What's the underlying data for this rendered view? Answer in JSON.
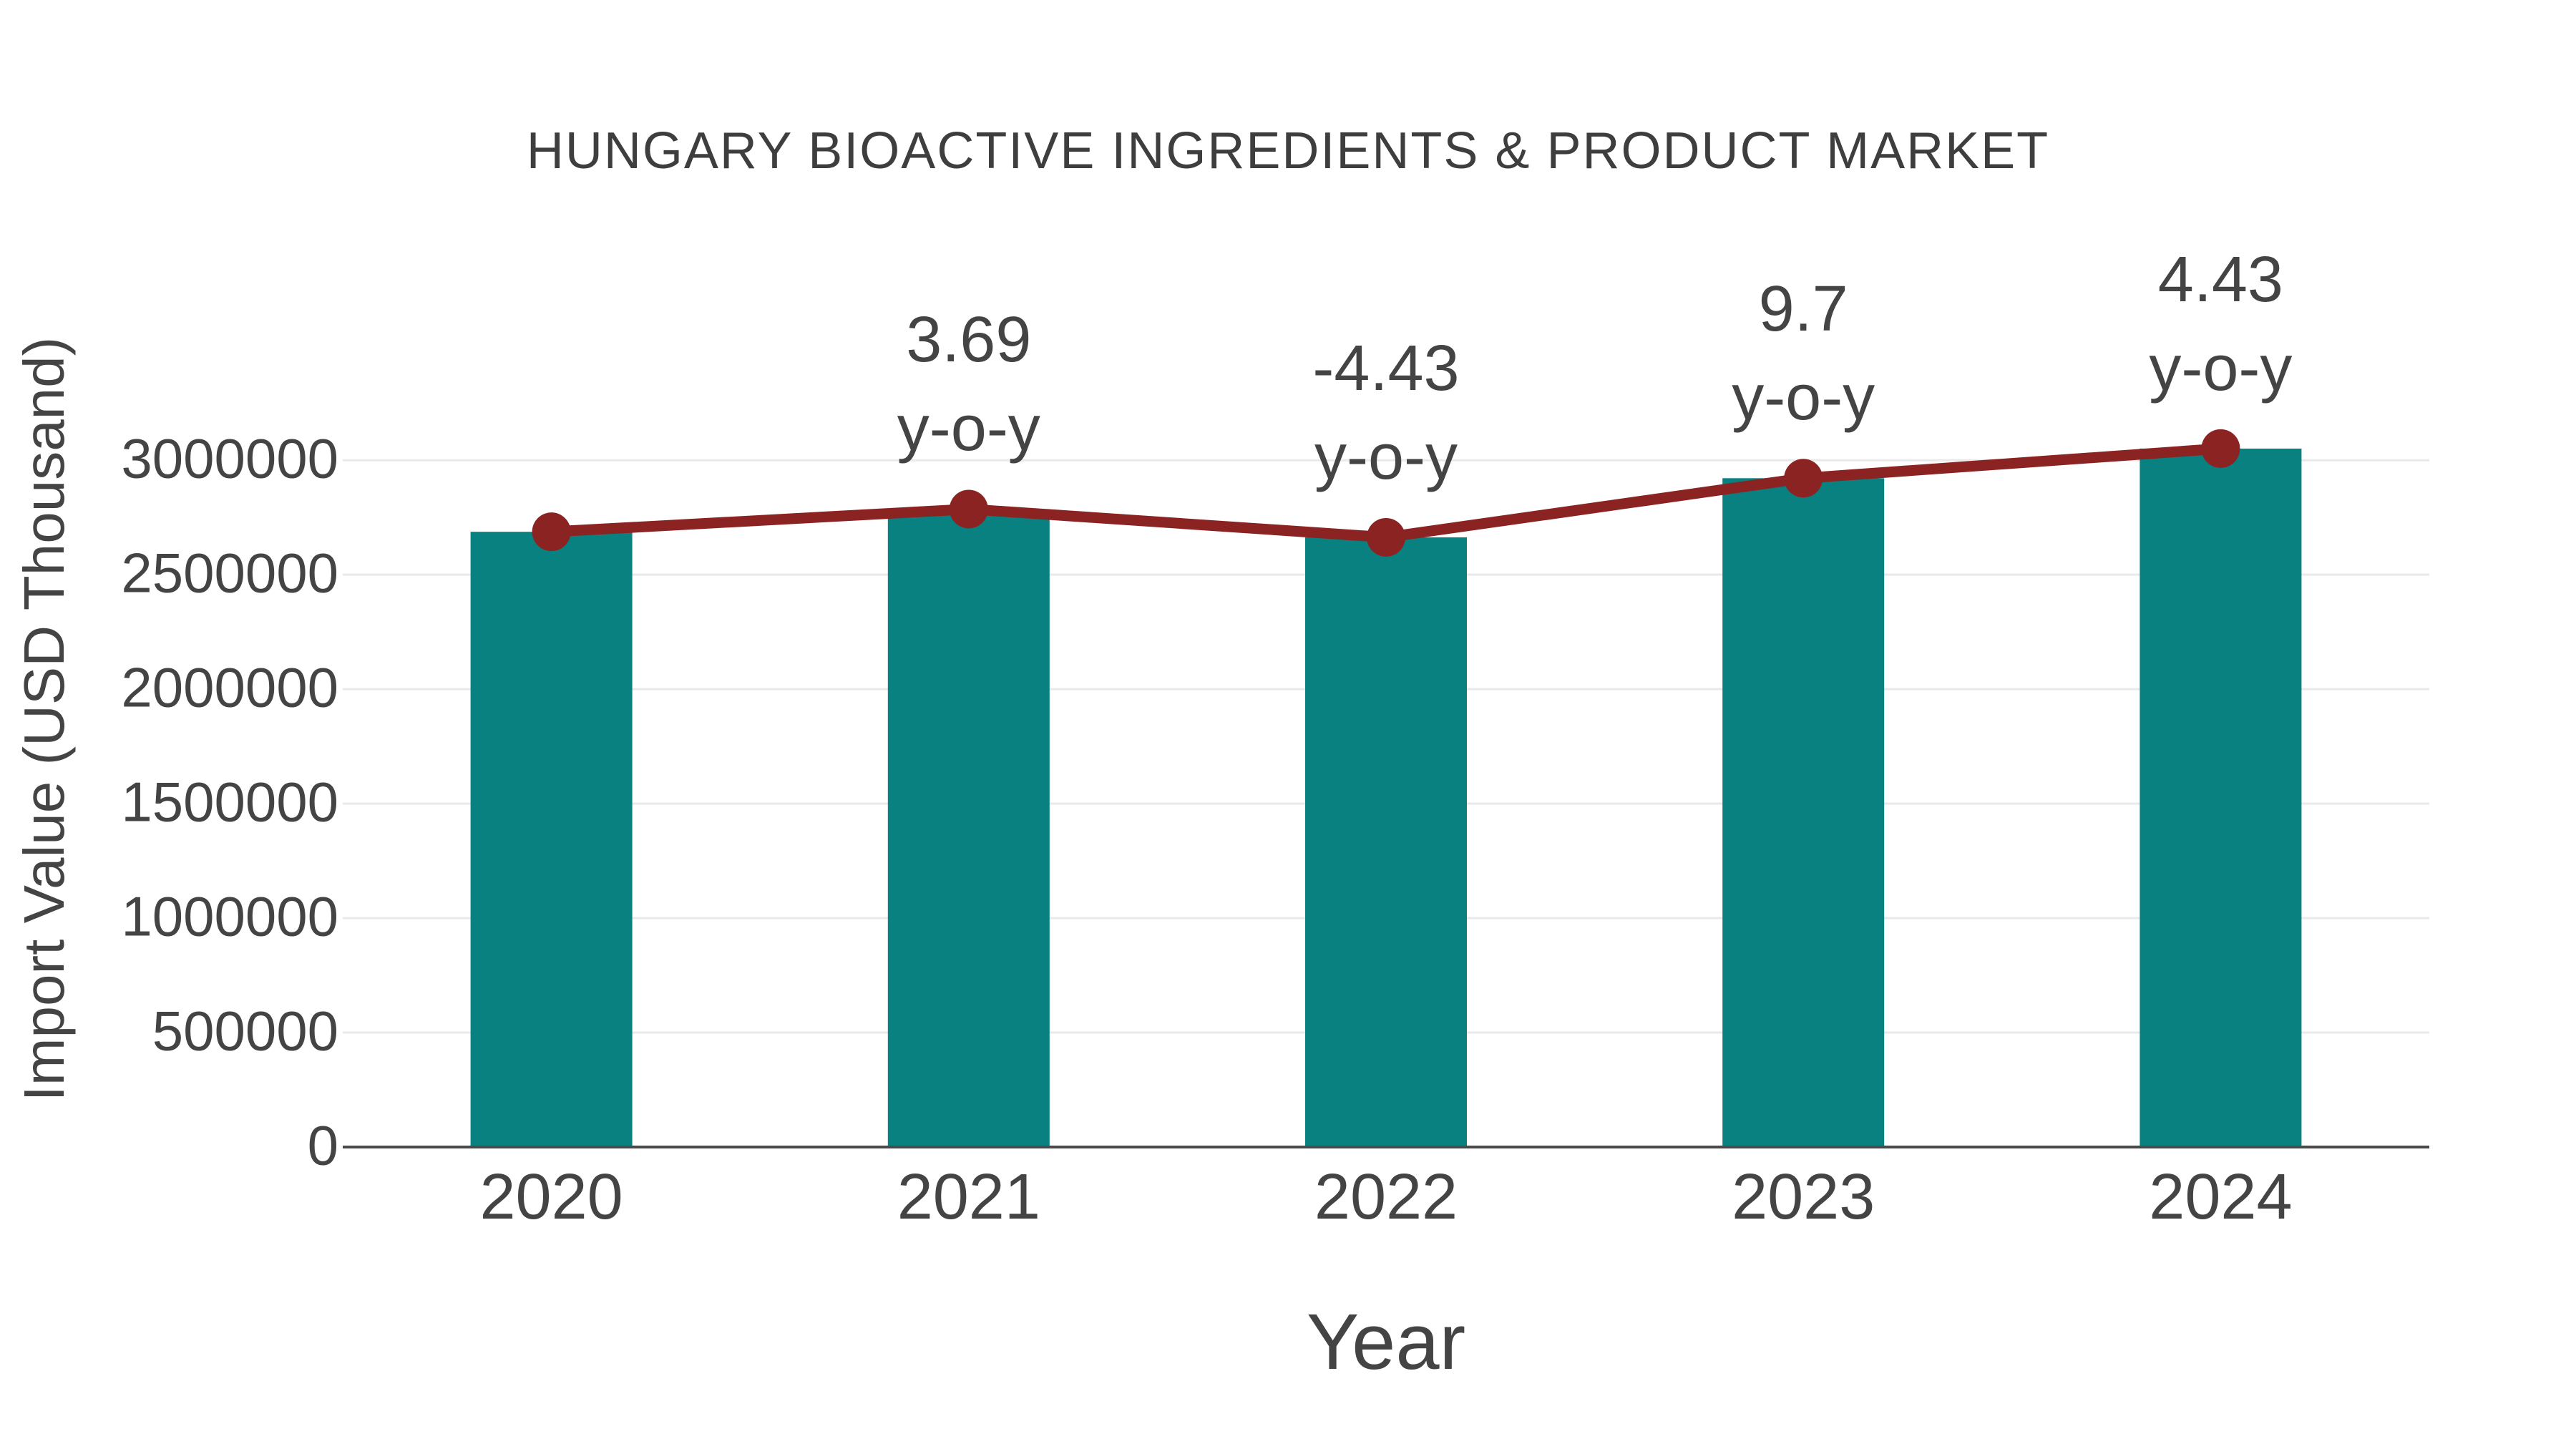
{
  "colors": {
    "bar": "#088180",
    "line": "#8b2322",
    "marker": "#8b2322",
    "grid": "#e9e9e9",
    "axis": "#4a4a4a",
    "text": "#444444",
    "title": "#3e3e3e",
    "background": "#ffffff"
  },
  "chart_data": {
    "type": "bar",
    "title": "HUNGARY BIOACTIVE INGREDIENTS & PRODUCT MARKET",
    "xlabel": "Year",
    "ylabel": "Import Value (USD Thousand)",
    "categories": [
      "2020",
      "2021",
      "2022",
      "2023",
      "2024"
    ],
    "series": [
      {
        "name": "Import Value (USD Thousand)",
        "type": "bar",
        "color": "#088180",
        "values": [
          2687500,
          2786600,
          2663200,
          2921500,
          3051000
        ]
      },
      {
        "name": "Import Value trend",
        "type": "line",
        "color": "#8b2322",
        "values": [
          2687500,
          2786600,
          2663200,
          2921500,
          3051000
        ]
      }
    ],
    "yoy_percent": [
      null,
      3.69,
      -4.43,
      9.7,
      4.43
    ],
    "annotations": [
      {
        "category": "2021",
        "text": "3.69",
        "suffix": "y-o-y"
      },
      {
        "category": "2022",
        "text": "-4.43",
        "suffix": "y-o-y"
      },
      {
        "category": "2023",
        "text": "9.7",
        "suffix": "y-o-y"
      },
      {
        "category": "2024",
        "text": "4.43",
        "suffix": "y-o-y"
      }
    ],
    "y_ticks": {
      "values": [
        0,
        500000,
        1000000,
        1500000,
        2000000,
        2500000,
        3000000
      ],
      "labels": [
        "0",
        "500000",
        "1000000",
        "1500000",
        "2000000",
        "2500000",
        "3000000"
      ]
    },
    "ylim": [
      0,
      3135000
    ],
    "grid": "horizontal",
    "legend": "none"
  }
}
